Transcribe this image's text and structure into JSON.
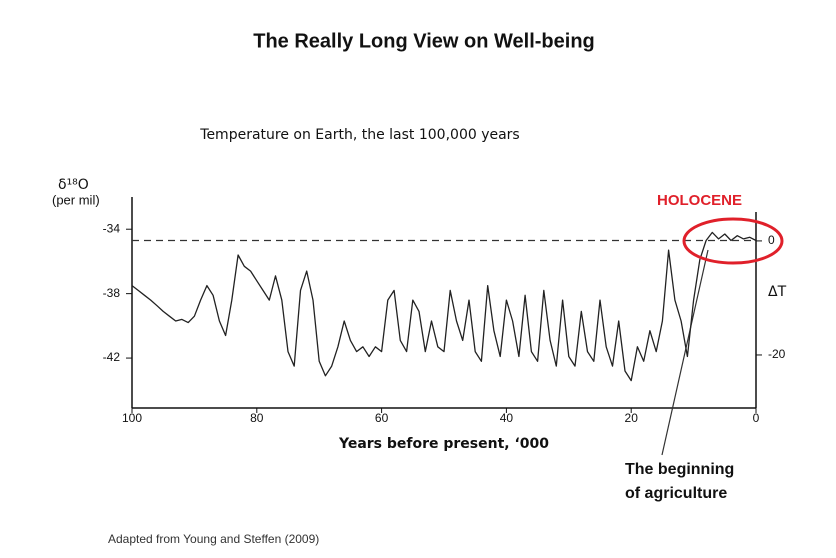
{
  "chart_data": {
    "type": "line",
    "title": "The Really Long View on Well-being",
    "subtitle": "Temperature on Earth, the last 100,000 years",
    "y_label": [
      "δ¹⁸O",
      "(per mil)"
    ],
    "y2_label": "ΔT",
    "x_label": "Years before present, ‘000",
    "source": "Adapted from Young and Steffen (2009)",
    "annotations": {
      "period": "HOLOCENE",
      "note": [
        "The beginning",
        "of agriculture"
      ]
    },
    "reference_value": -34.7,
    "x": [
      100,
      99,
      98,
      97,
      96,
      95,
      94,
      93,
      92,
      91,
      90,
      89,
      88,
      87,
      86,
      85,
      84,
      83,
      82,
      81,
      80,
      79,
      78,
      77,
      76,
      75,
      74,
      73,
      72,
      71,
      70,
      69,
      68,
      67,
      66,
      65,
      64,
      63,
      62,
      61,
      60,
      59,
      58,
      57,
      56,
      55,
      54,
      53,
      52,
      51,
      50,
      49,
      48,
      47,
      46,
      45,
      44,
      43,
      42,
      41,
      40,
      39,
      38,
      37,
      36,
      35,
      34,
      33,
      32,
      31,
      30,
      29,
      28,
      27,
      26,
      25,
      24,
      23,
      22,
      21,
      20,
      19,
      18,
      17,
      16,
      15,
      14,
      13,
      12,
      11,
      10,
      9,
      8,
      7,
      6,
      5,
      4,
      3,
      2,
      1,
      0
    ],
    "series": [
      {
        "name": "δ¹⁸O",
        "color": "#222222",
        "values": [
          -37.5,
          -37.8,
          -38.1,
          -38.4,
          -38.75,
          -39.1,
          -39.4,
          -39.7,
          -39.6,
          -39.8,
          -39.4,
          -38.4,
          -37.5,
          -38.1,
          -39.7,
          -40.6,
          -38.4,
          -35.6,
          -36.3,
          -36.6,
          -37.2,
          -37.8,
          -38.4,
          -36.9,
          -38.4,
          -41.6,
          -42.5,
          -37.8,
          -36.6,
          -38.4,
          -42.2,
          -43.1,
          -42.5,
          -41.3,
          -39.7,
          -40.9,
          -41.6,
          -41.3,
          -41.9,
          -41.3,
          -41.6,
          -38.4,
          -37.8,
          -40.9,
          -41.6,
          -38.4,
          -39.1,
          -41.6,
          -39.7,
          -41.3,
          -41.6,
          -37.8,
          -39.7,
          -40.9,
          -38.4,
          -41.6,
          -42.2,
          -37.5,
          -40.3,
          -41.9,
          -38.4,
          -39.7,
          -41.9,
          -38.1,
          -41.6,
          -42.2,
          -37.8,
          -40.9,
          -42.5,
          -38.4,
          -41.9,
          -42.5,
          -39.1,
          -41.6,
          -42.2,
          -38.4,
          -41.3,
          -42.5,
          -39.7,
          -42.8,
          -43.4,
          -41.3,
          -42.2,
          -40.3,
          -41.6,
          -39.7,
          -35.3,
          -38.4,
          -39.7,
          -41.9,
          -38.4,
          -35.9,
          -34.7,
          -34.2,
          -34.6,
          -34.3,
          -34.7,
          -34.4,
          -34.6,
          -34.5,
          -34.7
        ]
      }
    ],
    "xlim": [
      100,
      0
    ],
    "xticks": [
      100,
      80,
      60,
      40,
      20,
      0
    ],
    "ylim": [
      -45.1,
      -32
    ],
    "yticks": [
      -34,
      -38,
      -42
    ],
    "y2lim": [
      -29.3,
      7.7
    ],
    "y2ticks": [
      0,
      -20
    ],
    "highlight_color": "#e0202a"
  }
}
